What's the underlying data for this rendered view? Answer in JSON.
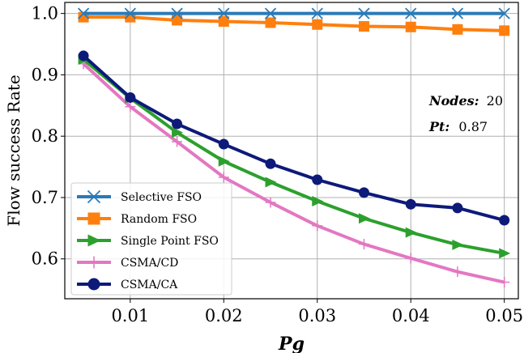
{
  "chart_data": {
    "type": "line",
    "xlabel": "Pg",
    "ylabel": "Flow success Rate",
    "xlim": [
      0.003,
      0.0515
    ],
    "ylim": [
      0.535,
      1.018
    ],
    "grid": true,
    "legend_position": "bottom-left",
    "x": [
      0.005,
      0.01,
      0.015,
      0.02,
      0.025,
      0.03,
      0.035,
      0.04,
      0.045,
      0.05
    ],
    "x_ticks": [
      0.01,
      0.02,
      0.03,
      0.04,
      0.05
    ],
    "x_tick_labels": [
      "0.01",
      "0.02",
      "0.03",
      "0.04",
      "0.05"
    ],
    "y_ticks": [
      0.6,
      0.7,
      0.8,
      0.9,
      1.0
    ],
    "y_tick_labels": [
      "0.6",
      "0.7",
      "0.8",
      "0.9",
      "1.0"
    ],
    "series": [
      {
        "name": "Selective FSO",
        "color": "#2a7ab8",
        "marker": "x",
        "values": [
          1.0,
          1.0,
          1.0,
          1.0,
          1.0,
          1.0,
          1.0,
          1.0,
          1.0,
          1.0
        ]
      },
      {
        "name": "Random FSO",
        "color": "#ff7f0e",
        "marker": "square",
        "values": [
          0.994,
          0.994,
          0.989,
          0.987,
          0.985,
          0.982,
          0.979,
          0.978,
          0.974,
          0.972
        ]
      },
      {
        "name": "Single Point FSO",
        "color": "#2ca02c",
        "marker": "triangle-right",
        "values": [
          0.925,
          0.862,
          0.806,
          0.759,
          0.725,
          0.694,
          0.666,
          0.643,
          0.623,
          0.609
        ]
      },
      {
        "name": "CSMA/CD",
        "color": "#e377c2",
        "marker": "plus",
        "values": [
          0.918,
          0.848,
          0.791,
          0.733,
          0.692,
          0.654,
          0.624,
          0.601,
          0.579,
          0.562
        ]
      },
      {
        "name": "CSMA/CA",
        "color": "#0d1a7a",
        "marker": "circle",
        "values": [
          0.931,
          0.863,
          0.82,
          0.787,
          0.755,
          0.729,
          0.708,
          0.689,
          0.683,
          0.663
        ]
      }
    ],
    "annotations": [
      {
        "label": "Nodes:",
        "value": "20"
      },
      {
        "label": "Pt:",
        "value": "0.87"
      }
    ]
  }
}
